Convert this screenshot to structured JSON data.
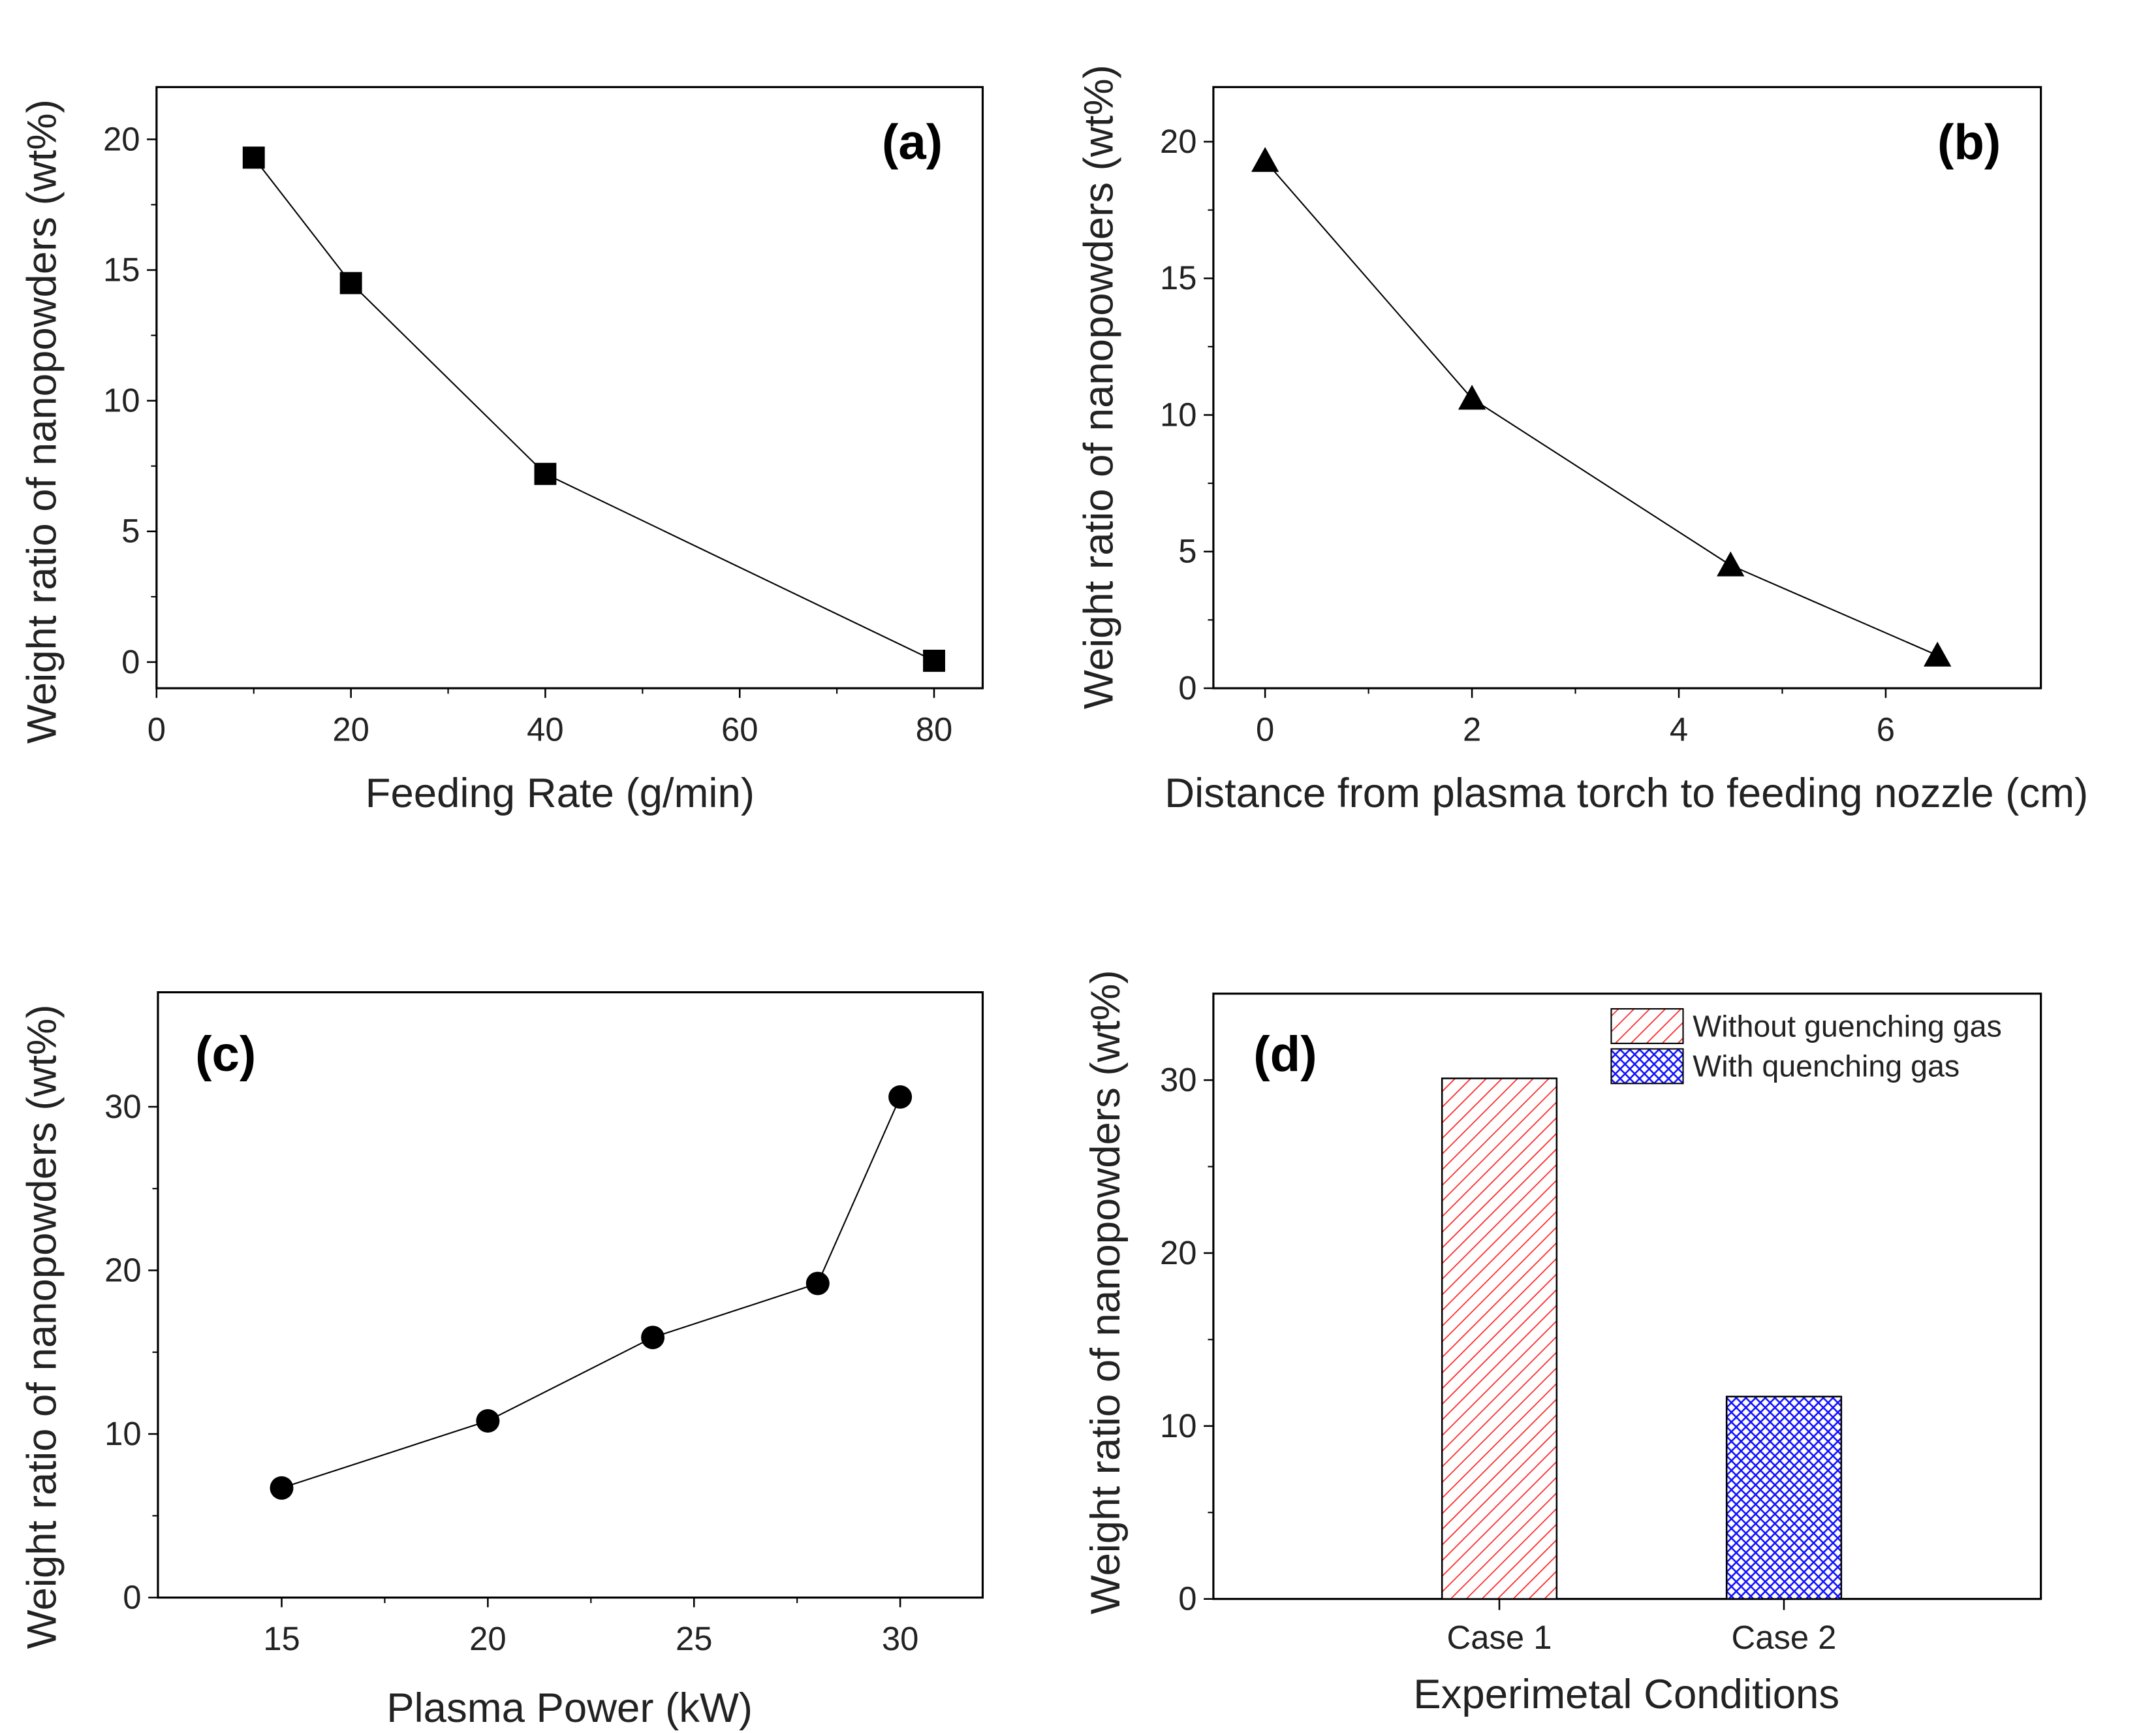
{
  "chart_data": [
    {
      "id": "a",
      "type": "line",
      "panel_label": "(a)",
      "xlabel": "Feeding Rate (g/min)",
      "ylabel": "Weight ratio of nanopowders (wt%)",
      "marker": "square",
      "x": [
        10,
        20,
        40,
        80
      ],
      "y": [
        19.3,
        14.5,
        7.2,
        0.05
      ],
      "xlim": [
        0,
        85
      ],
      "ylim": [
        -1,
        22
      ],
      "xticks": [
        0,
        20,
        40,
        60,
        80
      ],
      "xticklabels": [
        "0",
        "20",
        "40",
        "60",
        "80"
      ],
      "yticks": [
        0,
        5,
        10,
        15,
        20
      ],
      "yticklabels": [
        "0",
        "5",
        "10",
        "15",
        "20"
      ]
    },
    {
      "id": "b",
      "type": "line",
      "panel_label": "(b)",
      "xlabel": "Distance from plasma torch to feeding nozzle (cm)",
      "ylabel": "Weight ratio of nanopowders (wt%)",
      "marker": "triangle",
      "x": [
        0,
        2,
        4.5,
        6.5
      ],
      "y": [
        19.3,
        10.6,
        4.5,
        1.2
      ],
      "xlim": [
        -0.5,
        7.5
      ],
      "ylim": [
        0,
        22
      ],
      "xticks": [
        0,
        2,
        4,
        6
      ],
      "xticklabels": [
        "0",
        "2",
        "4",
        "6"
      ],
      "yticks": [
        0,
        5,
        10,
        15,
        20
      ],
      "yticklabels": [
        "0",
        "5",
        "10",
        "15",
        "20"
      ]
    },
    {
      "id": "c",
      "type": "line",
      "panel_label": "(c)",
      "xlabel": "Plasma Power (kW)",
      "ylabel": "Weight ratio of nanopowders (wt%)",
      "marker": "circle",
      "x": [
        15,
        20,
        24,
        28,
        30
      ],
      "y": [
        6.7,
        10.8,
        15.9,
        19.2,
        30.6
      ],
      "xlim": [
        12,
        32
      ],
      "ylim": [
        0,
        37
      ],
      "xticks": [
        15,
        20,
        25,
        30
      ],
      "xticklabels": [
        "15",
        "20",
        "25",
        "30"
      ],
      "yticks": [
        0,
        10,
        20,
        30
      ],
      "yticklabels": [
        "0",
        "10",
        "20",
        "30"
      ]
    },
    {
      "id": "d",
      "type": "bar",
      "panel_label": "(d)",
      "xlabel": "Experimetal Conditions",
      "ylabel": "Weight ratio of nanopowders (wt%)",
      "categories": [
        "Case 1",
        "Case 2"
      ],
      "series": [
        {
          "name": "Without guenching gas",
          "values": [
            30.1,
            null
          ],
          "color": "#ff2020",
          "pattern": "diagonal"
        },
        {
          "name": "With quenching gas",
          "values": [
            null,
            11.7
          ],
          "color": "#1010ff",
          "pattern": "crosshatch"
        }
      ],
      "ylim": [
        0,
        35
      ],
      "yticks": [
        0,
        10,
        20,
        30
      ],
      "yticklabels": [
        "0",
        "10",
        "20",
        "30"
      ],
      "legend": "top-right"
    }
  ]
}
